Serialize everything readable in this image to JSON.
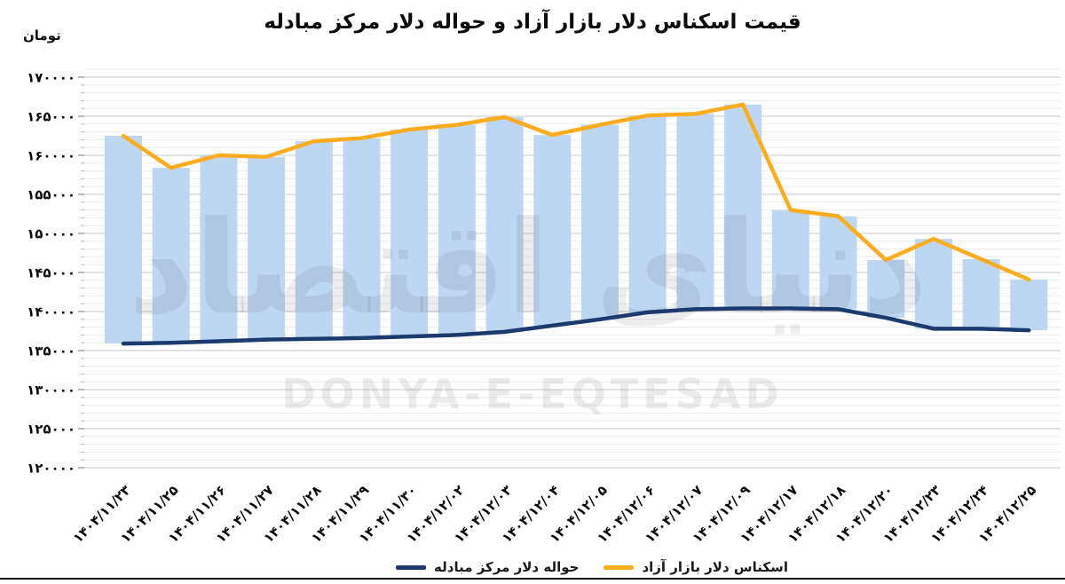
{
  "title": "قیمت اسکناس دلار بازار آزاد و حواله دلار مرکز مبادله",
  "y_axis": {
    "unit_label": "تومان",
    "tick_labels": [
      "۱۷۰۰۰۰",
      "۱۶۵۰۰۰",
      "۱۶۰۰۰۰",
      "۱۵۵۰۰۰",
      "۱۵۰۰۰۰",
      "۱۴۵۰۰۰",
      "۱۴۰۰۰۰",
      "۱۳۵۰۰۰",
      "۱۳۰۰۰۰",
      "۱۲۵۰۰۰",
      "۱۲۰۰۰۰"
    ],
    "tick_values": [
      170000,
      165000,
      160000,
      155000,
      150000,
      145000,
      140000,
      135000,
      130000,
      125000,
      120000
    ]
  },
  "watermark": {
    "persian": "دنیای اقتصاد",
    "latin": "DONYA-E-EQTESAD"
  },
  "legend": [
    {
      "label": "حواله دلار مرکز مبادله",
      "color": "#1b3a6e"
    },
    {
      "label": "اسکناس دلار بازار آزاد",
      "color": "#fcac1e"
    }
  ],
  "colors": {
    "free_market_line": "#fcac1e",
    "transfer_line": "#1b3a6e",
    "range_bar": "#bdd7f2",
    "grid_major": "#c9c9c9",
    "grid_minor": "#ececec",
    "text": "#0a0a0a"
  },
  "chart_data": {
    "type": "bar",
    "subtype": "floating-range-bars-with-two-lines",
    "title": "قیمت اسکناس دلار بازار آزاد و حواله دلار مرکز مبادله",
    "xlabel": "",
    "ylabel": "تومان",
    "ylim": [
      120000,
      170000
    ],
    "ytick_step": 5000,
    "minor_step": 1000,
    "grid": true,
    "legend_position": "bottom-center",
    "categories": [
      "۱۴۰۴/۱۱/۲۳",
      "۱۴۰۴/۱۱/۲۵",
      "۱۴۰۴/۱۱/۲۶",
      "۱۴۰۴/۱۱/۲۷",
      "۱۴۰۴/۱۱/۲۸",
      "۱۴۰۴/۱۱/۲۹",
      "۱۴۰۴/۱۱/۳۰",
      "۱۴۰۴/۱۲/۰۲",
      "۱۴۰۴/۱۲/۰۳",
      "۱۴۰۴/۱۲/۰۴",
      "۱۴۰۴/۱۲/۰۵",
      "۱۴۰۴/۱۲/۰۶",
      "۱۴۰۴/۱۲/۰۷",
      "۱۴۰۴/۱۲/۰۹",
      "۱۴۰۴/۱۲/۱۷",
      "۱۴۰۴/۱۲/۱۸",
      "۱۴۰۴/۱۲/۲۰",
      "۱۴۰۴/۱۲/۲۳",
      "۱۴۰۴/۱۲/۲۴",
      "۱۴۰۴/۱۲/۲۵"
    ],
    "series": [
      {
        "name": "اسکناس دلار بازار آزاد",
        "type": "line",
        "color": "#fcac1e",
        "values": [
          162500,
          158400,
          160000,
          159800,
          161800,
          162200,
          163300,
          163900,
          164900,
          162600,
          163900,
          165100,
          165300,
          166500,
          153000,
          152200,
          146600,
          149300,
          146700,
          144100
        ]
      },
      {
        "name": "حواله دلار مرکز مبادله",
        "type": "line",
        "color": "#1b3a6e",
        "values": [
          135900,
          136000,
          136200,
          136400,
          136500,
          136600,
          136800,
          137000,
          137400,
          138200,
          139000,
          139900,
          140300,
          140400,
          140400,
          140300,
          139200,
          137800,
          137800,
          137600
        ]
      },
      {
        "name": "بازه قیمت (حواله تا اسکناس)",
        "type": "bar",
        "color": "#bdd7f2",
        "note": "Each bar spans from the transfer price (bottom) to the free-market price (top)."
      }
    ]
  }
}
